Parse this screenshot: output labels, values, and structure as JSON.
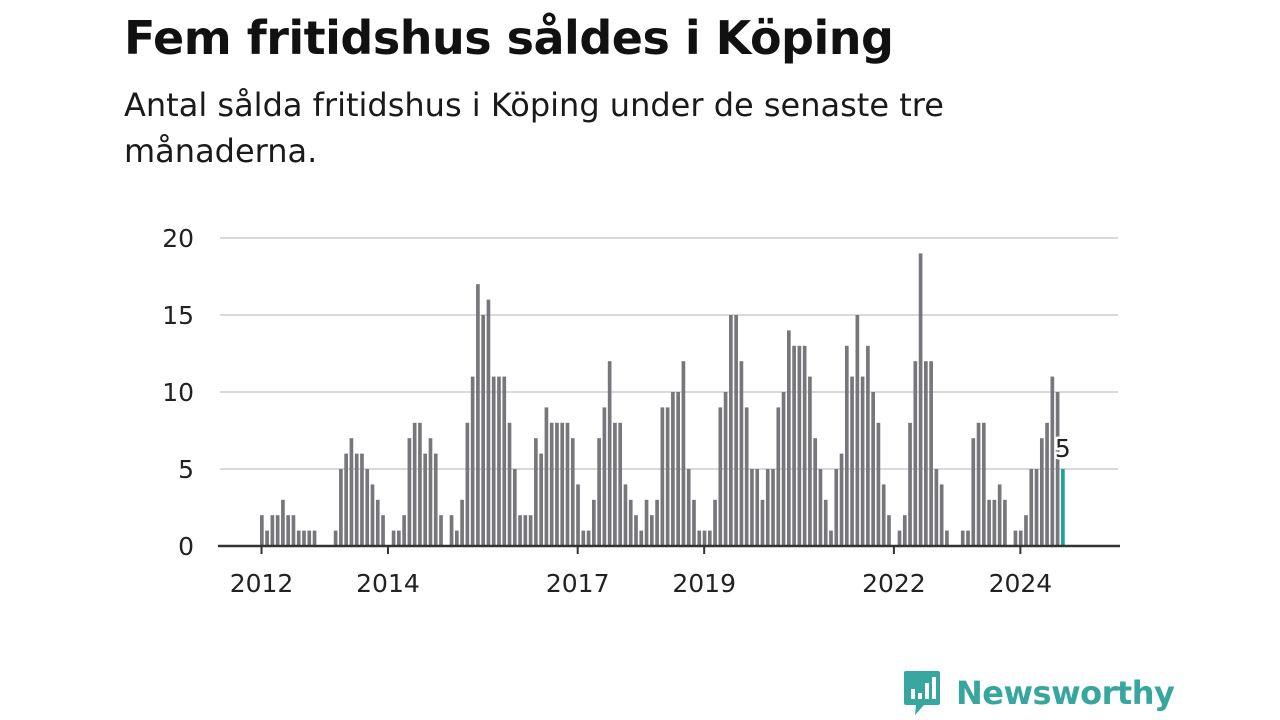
{
  "title": "Fem fritidshus såldes i Köping",
  "subtitle": "Antal sålda fritidshus i Köping under de senaste tre månaderna.",
  "logo": {
    "text": "Newsworthy",
    "icon": "bar-chart-speech-bubble-icon",
    "color": "#36a69e"
  },
  "chart_data": {
    "type": "bar",
    "title": "Fem fritidshus såldes i Köping",
    "subtitle": "Antal sålda fritidshus i Köping under de senaste tre månaderna.",
    "xlabel": "",
    "ylabel": "",
    "ylim": [
      0,
      20
    ],
    "yticks": [
      0,
      5,
      10,
      15,
      20
    ],
    "xticks": [
      "2012",
      "2014",
      "2017",
      "2019",
      "2022",
      "2024"
    ],
    "grid": true,
    "legend": "none",
    "bar_color": "#76767b",
    "highlight_color": "#1aa39a",
    "annotation": {
      "label": "5",
      "category": "2024-09"
    },
    "categories": [
      "2012-01",
      "2012-02",
      "2012-03",
      "2012-04",
      "2012-05",
      "2012-06",
      "2012-07",
      "2012-08",
      "2012-09",
      "2012-10",
      "2012-11",
      "2012-12",
      "2013-01",
      "2013-02",
      "2013-03",
      "2013-04",
      "2013-05",
      "2013-06",
      "2013-07",
      "2013-08",
      "2013-09",
      "2013-10",
      "2013-11",
      "2013-12",
      "2014-01",
      "2014-02",
      "2014-03",
      "2014-04",
      "2014-05",
      "2014-06",
      "2014-07",
      "2014-08",
      "2014-09",
      "2014-10",
      "2014-11",
      "2014-12",
      "2015-01",
      "2015-02",
      "2015-03",
      "2015-04",
      "2015-05",
      "2015-06",
      "2015-07",
      "2015-08",
      "2015-09",
      "2015-10",
      "2015-11",
      "2015-12",
      "2016-01",
      "2016-02",
      "2016-03",
      "2016-04",
      "2016-05",
      "2016-06",
      "2016-07",
      "2016-08",
      "2016-09",
      "2016-10",
      "2016-11",
      "2016-12",
      "2017-01",
      "2017-02",
      "2017-03",
      "2017-04",
      "2017-05",
      "2017-06",
      "2017-07",
      "2017-08",
      "2017-09",
      "2017-10",
      "2017-11",
      "2017-12",
      "2018-01",
      "2018-02",
      "2018-03",
      "2018-04",
      "2018-05",
      "2018-06",
      "2018-07",
      "2018-08",
      "2018-09",
      "2018-10",
      "2018-11",
      "2018-12",
      "2019-01",
      "2019-02",
      "2019-03",
      "2019-04",
      "2019-05",
      "2019-06",
      "2019-07",
      "2019-08",
      "2019-09",
      "2019-10",
      "2019-11",
      "2019-12",
      "2020-01",
      "2020-02",
      "2020-03",
      "2020-04",
      "2020-05",
      "2020-06",
      "2020-07",
      "2020-08",
      "2020-09",
      "2020-10",
      "2020-11",
      "2020-12",
      "2021-01",
      "2021-02",
      "2021-03",
      "2021-04",
      "2021-05",
      "2021-06",
      "2021-07",
      "2021-08",
      "2021-09",
      "2021-10",
      "2021-11",
      "2021-12",
      "2022-01",
      "2022-02",
      "2022-03",
      "2022-04",
      "2022-05",
      "2022-06",
      "2022-07",
      "2022-08",
      "2022-09",
      "2022-10",
      "2022-11",
      "2022-12",
      "2023-01",
      "2023-02",
      "2023-03",
      "2023-04",
      "2023-05",
      "2023-06",
      "2023-07",
      "2023-08",
      "2023-09",
      "2023-10",
      "2023-11",
      "2023-12",
      "2024-01",
      "2024-02",
      "2024-03",
      "2024-04",
      "2024-05",
      "2024-06",
      "2024-07",
      "2024-08",
      "2024-09"
    ],
    "values": [
      2,
      1,
      2,
      2,
      3,
      2,
      2,
      1,
      1,
      1,
      1,
      0,
      0,
      0,
      1,
      5,
      6,
      7,
      6,
      6,
      5,
      4,
      3,
      2,
      0,
      1,
      1,
      2,
      7,
      8,
      8,
      6,
      7,
      6,
      2,
      0,
      2,
      1,
      3,
      8,
      11,
      17,
      15,
      16,
      11,
      11,
      11,
      8,
      5,
      2,
      2,
      2,
      7,
      6,
      9,
      8,
      8,
      8,
      8,
      7,
      4,
      1,
      1,
      3,
      7,
      9,
      12,
      8,
      8,
      4,
      3,
      2,
      1,
      3,
      2,
      3,
      9,
      9,
      10,
      10,
      12,
      5,
      3,
      1,
      1,
      1,
      3,
      9,
      10,
      15,
      15,
      12,
      9,
      5,
      5,
      3,
      5,
      5,
      9,
      10,
      14,
      13,
      13,
      13,
      11,
      7,
      5,
      3,
      1,
      5,
      6,
      13,
      11,
      15,
      11,
      13,
      10,
      8,
      4,
      2,
      0,
      1,
      2,
      8,
      12,
      19,
      12,
      12,
      5,
      4,
      1,
      0,
      0,
      1,
      1,
      7,
      8,
      8,
      3,
      3,
      4,
      3,
      0,
      1,
      1,
      2,
      5,
      5,
      7,
      8,
      11,
      10,
      5
    ]
  }
}
